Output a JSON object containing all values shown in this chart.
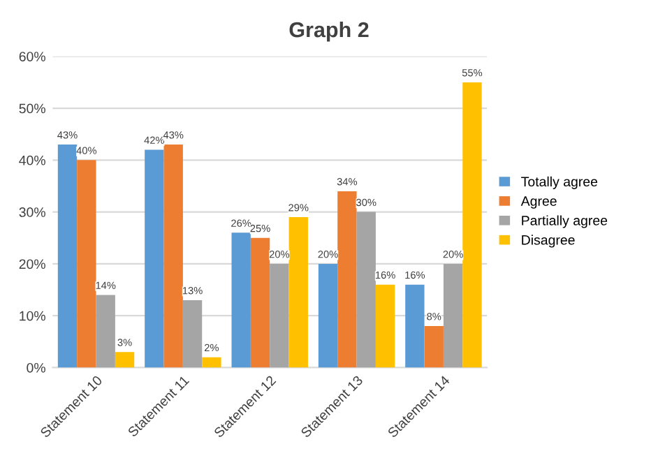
{
  "chart_data": {
    "type": "bar",
    "title": "Graph 2",
    "categories": [
      "Statement 10",
      "Statement 11",
      "Statement 12",
      "Statement 13",
      "Statement 14"
    ],
    "series": [
      {
        "name": "Totally agree",
        "color": "#5b9bd5",
        "values": [
          43,
          42,
          26,
          20,
          16
        ],
        "value_labels": [
          "43%",
          "42%",
          "26%",
          "20%",
          "16%"
        ]
      },
      {
        "name": "Agree",
        "color": "#ed7d31",
        "values": [
          40,
          43,
          25,
          34,
          8
        ],
        "value_labels": [
          "40%",
          "43%",
          "25%",
          "34%",
          "8%"
        ]
      },
      {
        "name": "Partially agree",
        "color": "#a5a5a5",
        "values": [
          14,
          13,
          20,
          30,
          20
        ],
        "value_labels": [
          "14%",
          "13%",
          "20%",
          "30%",
          "20%"
        ]
      },
      {
        "name": "Disagree",
        "color": "#ffc000",
        "values": [
          3,
          2,
          29,
          16,
          55
        ],
        "value_labels": [
          "3%",
          "2%",
          "29%",
          "16%",
          "55%"
        ]
      }
    ],
    "ylim": [
      0,
      60
    ],
    "yticks": [
      {
        "value": 0,
        "label": "0%"
      },
      {
        "value": 10,
        "label": "10%"
      },
      {
        "value": 20,
        "label": "20%"
      },
      {
        "value": 30,
        "label": "30%"
      },
      {
        "value": 40,
        "label": "40%"
      },
      {
        "value": 50,
        "label": "50%"
      },
      {
        "value": 60,
        "label": "60%"
      }
    ],
    "grid": "y",
    "legend": "right"
  }
}
